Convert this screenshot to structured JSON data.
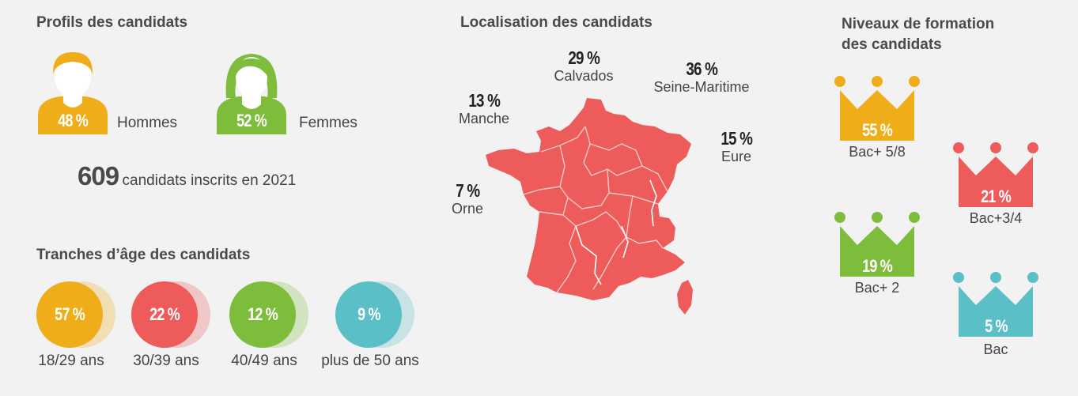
{
  "colors": {
    "yellow": "#f0ad1a",
    "red": "#ee5b5b",
    "green": "#7ebd3c",
    "teal": "#5bbfc8",
    "background": "#f2f2f2"
  },
  "profils": {
    "title": "Profils des candidats",
    "hommes": {
      "pct": "48 %",
      "label": "Hommes",
      "icon": "man-icon"
    },
    "femmes": {
      "pct": "52 %",
      "label": "Femmes",
      "icon": "woman-icon"
    },
    "inscrits_count": "609",
    "inscrits_text": "candidats inscrits en 2021"
  },
  "ages": {
    "title": "Tranches d’âge des candidats",
    "items": [
      {
        "pct": "57 %",
        "label": "18/29 ans"
      },
      {
        "pct": "22 %",
        "label": "30/39 ans"
      },
      {
        "pct": "12 %",
        "label": "40/49 ans"
      },
      {
        "pct": "9 %",
        "label": "plus de 50 ans"
      }
    ]
  },
  "localisation": {
    "title": "Localisation des candidats",
    "items": [
      {
        "pct": "29 %",
        "name": "Calvados"
      },
      {
        "pct": "36 %",
        "name": "Seine-Maritime"
      },
      {
        "pct": "13 %",
        "name": "Manche"
      },
      {
        "pct": "15 %",
        "name": "Eure"
      },
      {
        "pct": "7 %",
        "name": "Orne"
      }
    ]
  },
  "formation": {
    "title_line1": "Niveaux de formation",
    "title_line2": "des candidats",
    "items": [
      {
        "pct": "55 %",
        "label": "Bac+ 5/8"
      },
      {
        "pct": "21 %",
        "label": "Bac+3/4"
      },
      {
        "pct": "19 %",
        "label": "Bac+ 2"
      },
      {
        "pct": "5 %",
        "label": "Bac"
      }
    ]
  },
  "chart_data": [
    {
      "type": "bar",
      "title": "Profils des candidats",
      "categories": [
        "Hommes",
        "Femmes"
      ],
      "values": [
        48,
        52
      ]
    },
    {
      "type": "bar",
      "title": "Tranches d’âge des candidats",
      "categories": [
        "18/29 ans",
        "30/39 ans",
        "40/49 ans",
        "plus de 50 ans"
      ],
      "values": [
        57,
        22,
        12,
        9
      ]
    },
    {
      "type": "bar",
      "title": "Localisation des candidats",
      "categories": [
        "Calvados",
        "Seine-Maritime",
        "Manche",
        "Eure",
        "Orne"
      ],
      "values": [
        29,
        36,
        13,
        15,
        7
      ]
    },
    {
      "type": "bar",
      "title": "Niveaux de formation des candidats",
      "categories": [
        "Bac+ 5/8",
        "Bac+3/4",
        "Bac+ 2",
        "Bac"
      ],
      "values": [
        55,
        21,
        19,
        5
      ]
    }
  ]
}
